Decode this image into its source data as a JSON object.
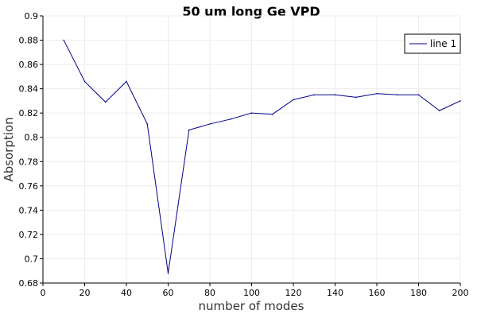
{
  "chart_data": {
    "type": "line",
    "title": "50 um long Ge VPD",
    "xlabel": "number of modes",
    "ylabel": "Absorption",
    "xlim": [
      0,
      200
    ],
    "ylim": [
      0.68,
      0.9
    ],
    "xticks": [
      0,
      20,
      40,
      60,
      80,
      100,
      120,
      140,
      160,
      180,
      200
    ],
    "yticks": [
      0.68,
      0.7,
      0.72,
      0.74,
      0.76,
      0.78,
      0.8,
      0.82,
      0.84,
      0.86,
      0.88,
      0.9
    ],
    "grid": true,
    "legend": {
      "position": "top-right"
    },
    "series": [
      {
        "name": "line 1",
        "color": "#00008b",
        "x": [
          10,
          20,
          30,
          40,
          50,
          60,
          70,
          80,
          90,
          100,
          110,
          120,
          130,
          140,
          150,
          160,
          170,
          180,
          190,
          200
        ],
        "y": [
          0.88,
          0.846,
          0.829,
          0.846,
          0.811,
          0.688,
          0.806,
          0.811,
          0.815,
          0.82,
          0.819,
          0.831,
          0.835,
          0.835,
          0.833,
          0.836,
          0.835,
          0.835,
          0.822,
          0.83
        ]
      }
    ]
  }
}
